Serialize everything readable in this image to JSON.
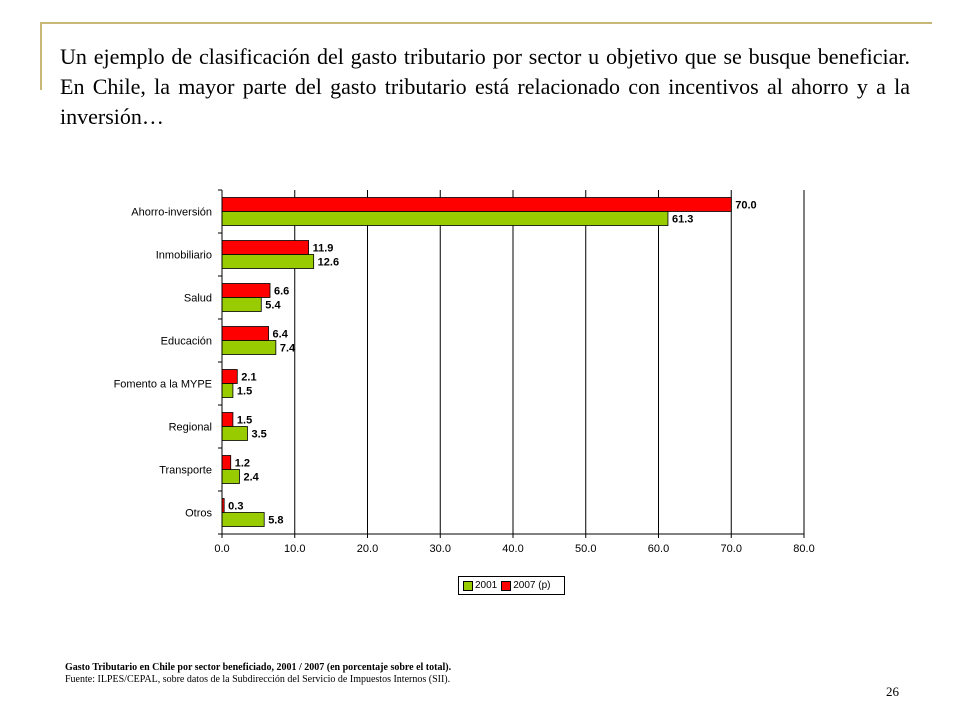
{
  "slide": {
    "title": "Un ejemplo de clasificación del gasto tributario por sector u objetivo que se busque beneficiar. En Chile, la mayor parte del gasto tributario está relacionado con incentivos al ahorro y a la inversión…",
    "caption_title": "Gasto Tributario en Chile por sector beneficiado, 2001 / 2007 (en porcentaje sobre el total).",
    "caption_source": "Fuente: ILPES/CEPAL, sobre datos de la Subdirección del Servicio de Impuestos Internos (SII).",
    "page_number": "26"
  },
  "chart_data": {
    "type": "bar",
    "orientation": "horizontal",
    "categories": [
      "Ahorro-inversión",
      "Inmobiliario",
      "Salud",
      "Educación",
      "Fomento a la MYPE",
      "Regional",
      "Transporte",
      "Otros"
    ],
    "series": [
      {
        "name": "2007 (p)",
        "color": "#ff0000",
        "values": [
          70.0,
          11.9,
          6.6,
          6.4,
          2.1,
          1.5,
          1.2,
          0.3
        ]
      },
      {
        "name": "2001",
        "color": "#99cc00",
        "values": [
          61.3,
          12.6,
          5.4,
          7.4,
          1.5,
          3.5,
          2.4,
          5.8
        ]
      }
    ],
    "value_labels": [
      [
        "70.0",
        "11.9",
        "6.6",
        "6.4",
        "2.1",
        "1.5",
        "1.2",
        "0.3"
      ],
      [
        "61.3",
        "12.6",
        "5.4",
        "7.4",
        "1.5",
        "3.5",
        "2.4",
        "5.8"
      ]
    ],
    "xlim": [
      0,
      80
    ],
    "xticks": [
      "0.0",
      "10.0",
      "20.0",
      "30.0",
      "40.0",
      "50.0",
      "60.0",
      "70.0",
      "80.0"
    ],
    "grid": true,
    "legend": {
      "position": "bottom",
      "entries": [
        "2001",
        "2007 (p)"
      ]
    }
  }
}
